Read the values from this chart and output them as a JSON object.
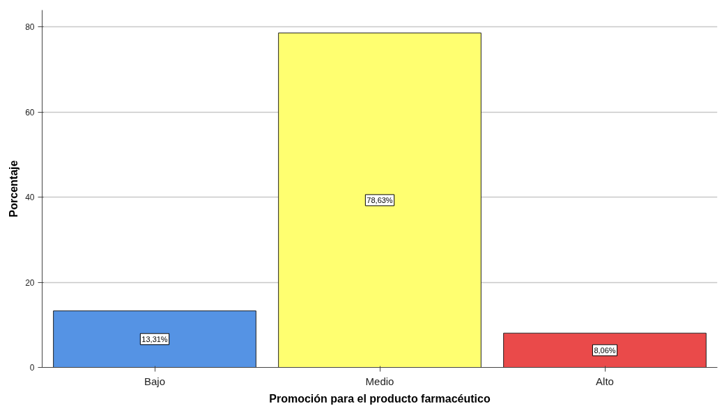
{
  "chart_data": {
    "type": "bar",
    "xlabel": "Promoción para el producto farmacéutico",
    "ylabel": "Porcentaje",
    "categories": [
      "Bajo",
      "Medio",
      "Alto"
    ],
    "values": [
      13.31,
      78.63,
      8.06
    ],
    "colors": [
      "#5593e4",
      "#ffff70",
      "#ea4a4a"
    ],
    "value_labels": [
      "13,31%",
      "78,63%",
      "8,06%"
    ],
    "ylim": [
      0,
      84
    ],
    "yticks": [
      0,
      20,
      40,
      60,
      80
    ],
    "grid": "y"
  }
}
